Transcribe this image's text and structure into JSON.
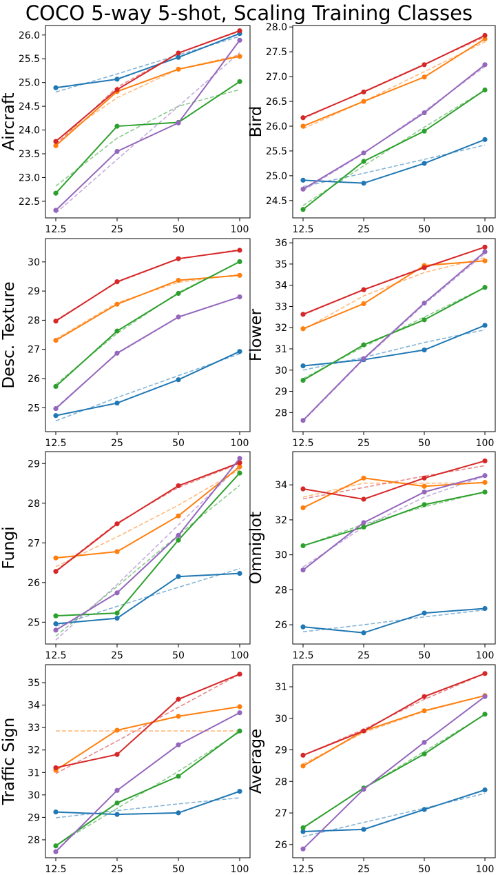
{
  "figure": {
    "title": "COCO 5-way 5-shot, Scaling Training Classes"
  },
  "colors": {
    "blue": "#1f77b4",
    "orange": "#ff7f0e",
    "green": "#2ca02c",
    "red": "#d62728",
    "purple": "#9467bd"
  },
  "chart_data": [
    {
      "type": "line",
      "title": "",
      "xlabel": "",
      "ylabel": "Aircraft",
      "categories": [
        "12.5",
        "25",
        "50",
        "100"
      ],
      "ylim": [
        22.15,
        26.2
      ],
      "yticks": [
        22.5,
        23.0,
        23.5,
        24.0,
        24.5,
        25.0,
        25.5,
        26.0
      ],
      "ytick_decimals": 1,
      "series": [
        {
          "name": "blue",
          "color": "#1f77b4",
          "values": [
            24.89,
            25.07,
            25.53,
            26.03
          ],
          "fit": [
            24.8,
            25.18,
            25.58,
            25.97
          ]
        },
        {
          "name": "orange",
          "color": "#ff7f0e",
          "values": [
            23.67,
            24.81,
            25.28,
            25.55
          ],
          "fit": [
            23.78,
            24.68,
            25.28,
            25.58
          ]
        },
        {
          "name": "green",
          "color": "#2ca02c",
          "values": [
            22.67,
            24.08,
            24.16,
            25.02
          ],
          "fit": [
            22.82,
            23.83,
            24.5,
            24.85
          ]
        },
        {
          "name": "red",
          "color": "#d62728",
          "values": [
            23.76,
            24.85,
            25.62,
            26.09
          ],
          "fit": [
            23.7,
            24.9,
            25.62,
            26.08
          ]
        },
        {
          "name": "purple",
          "color": "#9467bd",
          "values": [
            22.31,
            23.55,
            24.15,
            25.89
          ],
          "fit": [
            22.25,
            23.38,
            24.5,
            25.63
          ]
        }
      ]
    },
    {
      "type": "line",
      "title": "",
      "xlabel": "",
      "ylabel": "Bird",
      "categories": [
        "12.5",
        "25",
        "50",
        "100"
      ],
      "ylim": [
        24.15,
        28.03
      ],
      "yticks": [
        24.5,
        25.0,
        25.5,
        26.0,
        26.5,
        27.0,
        27.5,
        28.0
      ],
      "ytick_decimals": 1,
      "series": [
        {
          "name": "blue",
          "color": "#1f77b4",
          "values": [
            24.91,
            24.85,
            25.25,
            25.73
          ],
          "fit": [
            24.78,
            25.05,
            25.33,
            25.62
          ]
        },
        {
          "name": "orange",
          "color": "#ff7f0e",
          "values": [
            26.0,
            26.5,
            26.99,
            27.76
          ],
          "fit": [
            25.95,
            26.5,
            27.1,
            27.7
          ]
        },
        {
          "name": "green",
          "color": "#2ca02c",
          "values": [
            24.32,
            25.29,
            25.9,
            26.73
          ],
          "fit": [
            24.4,
            25.2,
            25.98,
            26.73
          ]
        },
        {
          "name": "red",
          "color": "#d62728",
          "values": [
            26.17,
            26.69,
            27.24,
            27.83
          ],
          "fit": [
            26.15,
            26.7,
            27.25,
            27.8
          ]
        },
        {
          "name": "purple",
          "color": "#9467bd",
          "values": [
            24.73,
            25.46,
            26.27,
            27.24
          ],
          "fit": [
            24.7,
            25.45,
            26.3,
            27.2
          ]
        }
      ]
    },
    {
      "type": "line",
      "title": "",
      "xlabel": "",
      "ylabel": "Desc. Texture",
      "categories": [
        "12.5",
        "25",
        "50",
        "100"
      ],
      "ylim": [
        24.18,
        30.8
      ],
      "yticks": [
        25,
        26,
        27,
        28,
        29,
        30
      ],
      "ytick_decimals": 0,
      "series": [
        {
          "name": "blue",
          "color": "#1f77b4",
          "values": [
            24.73,
            25.16,
            25.96,
            26.93
          ],
          "fit": [
            24.55,
            25.35,
            26.1,
            26.85
          ]
        },
        {
          "name": "orange",
          "color": "#ff7f0e",
          "values": [
            27.31,
            28.55,
            29.37,
            29.54
          ],
          "fit": [
            27.35,
            28.6,
            29.3,
            29.57
          ]
        },
        {
          "name": "green",
          "color": "#2ca02c",
          "values": [
            25.73,
            27.63,
            28.92,
            30.01
          ],
          "fit": [
            25.8,
            27.55,
            28.95,
            30.0
          ]
        },
        {
          "name": "red",
          "color": "#d62728",
          "values": [
            27.97,
            29.32,
            30.11,
            30.4
          ],
          "fit": [
            28.0,
            29.3,
            30.1,
            30.42
          ]
        },
        {
          "name": "purple",
          "color": "#9467bd",
          "values": [
            24.97,
            26.87,
            28.11,
            28.8
          ],
          "fit": [
            25.0,
            26.85,
            28.1,
            28.8
          ]
        }
      ]
    },
    {
      "type": "line",
      "title": "",
      "xlabel": "",
      "ylabel": "Flower",
      "categories": [
        "12.5",
        "25",
        "50",
        "100"
      ],
      "ylim": [
        27.1,
        36.2
      ],
      "yticks": [
        28,
        29,
        30,
        31,
        32,
        33,
        34,
        35,
        36
      ],
      "ytick_decimals": 0,
      "series": [
        {
          "name": "blue",
          "color": "#1f77b4",
          "values": [
            30.2,
            30.49,
            30.95,
            32.11
          ],
          "fit": [
            30.0,
            30.6,
            31.3,
            31.9
          ]
        },
        {
          "name": "orange",
          "color": "#ff7f0e",
          "values": [
            31.95,
            33.13,
            34.93,
            35.15
          ],
          "fit": [
            31.9,
            33.5,
            34.6,
            35.3
          ]
        },
        {
          "name": "green",
          "color": "#2ca02c",
          "values": [
            29.52,
            31.19,
            32.37,
            33.9
          ],
          "fit": [
            29.6,
            31.1,
            32.5,
            33.9
          ]
        },
        {
          "name": "red",
          "color": "#d62728",
          "values": [
            32.63,
            33.79,
            34.83,
            35.8
          ],
          "fit": [
            32.6,
            33.8,
            34.85,
            35.8
          ]
        },
        {
          "name": "purple",
          "color": "#9467bd",
          "values": [
            27.63,
            30.54,
            33.16,
            35.58
          ],
          "fit": [
            27.6,
            30.5,
            33.1,
            35.5
          ]
        }
      ]
    },
    {
      "type": "line",
      "title": "",
      "xlabel": "",
      "ylabel": "Fungi",
      "categories": [
        "12.5",
        "25",
        "50",
        "100"
      ],
      "ylim": [
        24.45,
        29.3
      ],
      "yticks": [
        25,
        26,
        27,
        28,
        29
      ],
      "ytick_decimals": 0,
      "series": [
        {
          "name": "blue",
          "color": "#1f77b4",
          "values": [
            24.96,
            25.1,
            26.15,
            26.23
          ],
          "fit": [
            24.9,
            25.4,
            25.88,
            26.35
          ]
        },
        {
          "name": "orange",
          "color": "#ff7f0e",
          "values": [
            26.62,
            26.78,
            27.68,
            28.92
          ],
          "fit": [
            26.4,
            27.15,
            27.95,
            28.85
          ]
        },
        {
          "name": "green",
          "color": "#2ca02c",
          "values": [
            25.16,
            25.23,
            27.07,
            28.76
          ],
          "fit": [
            24.65,
            25.9,
            27.2,
            28.45
          ]
        },
        {
          "name": "red",
          "color": "#d62728",
          "values": [
            26.28,
            27.48,
            28.44,
            29.02
          ],
          "fit": [
            26.3,
            27.5,
            28.4,
            29.0
          ]
        },
        {
          "name": "purple",
          "color": "#9467bd",
          "values": [
            24.8,
            25.74,
            27.19,
            29.13
          ],
          "fit": [
            24.55,
            25.95,
            27.45,
            28.95
          ]
        }
      ]
    },
    {
      "type": "line",
      "title": "",
      "xlabel": "",
      "ylabel": "Omniglot",
      "categories": [
        "12.5",
        "25",
        "50",
        "100"
      ],
      "ylim": [
        24.9,
        35.9
      ],
      "yticks": [
        26,
        28,
        30,
        32,
        34
      ],
      "ytick_decimals": 0,
      "series": [
        {
          "name": "blue",
          "color": "#1f77b4",
          "values": [
            25.88,
            25.54,
            26.67,
            26.93
          ],
          "fit": [
            25.6,
            26.0,
            26.45,
            26.85
          ]
        },
        {
          "name": "orange",
          "color": "#ff7f0e",
          "values": [
            32.69,
            34.39,
            33.92,
            34.14
          ],
          "fit": [
            33.3,
            34.1,
            34.1,
            34.1
          ]
        },
        {
          "name": "green",
          "color": "#2ca02c",
          "values": [
            30.52,
            31.59,
            32.87,
            33.59
          ],
          "fit": [
            30.5,
            31.75,
            32.75,
            33.6
          ]
        },
        {
          "name": "red",
          "color": "#d62728",
          "values": [
            33.77,
            33.18,
            34.39,
            35.37
          ],
          "fit": [
            33.2,
            33.85,
            34.5,
            35.1
          ]
        },
        {
          "name": "purple",
          "color": "#9467bd",
          "values": [
            29.13,
            31.84,
            33.59,
            34.53
          ],
          "fit": [
            29.3,
            31.6,
            33.3,
            34.5
          ]
        }
      ]
    },
    {
      "type": "line",
      "title": "",
      "xlabel": "",
      "ylabel": "Traffic Sign",
      "categories": [
        "12.5",
        "25",
        "50",
        "100"
      ],
      "ylim": [
        27.2,
        35.8
      ],
      "yticks": [
        28,
        29,
        30,
        31,
        32,
        33,
        34,
        35
      ],
      "ytick_decimals": 0,
      "series": [
        {
          "name": "blue",
          "color": "#1f77b4",
          "values": [
            29.24,
            29.13,
            29.2,
            30.16
          ],
          "fit": [
            28.98,
            29.3,
            29.6,
            29.87
          ]
        },
        {
          "name": "orange",
          "color": "#ff7f0e",
          "values": [
            31.1,
            32.88,
            33.5,
            33.93
          ],
          "fit": [
            32.85,
            32.85,
            32.85,
            32.85
          ]
        },
        {
          "name": "green",
          "color": "#2ca02c",
          "values": [
            27.73,
            29.64,
            30.83,
            32.85
          ],
          "fit": [
            27.75,
            29.4,
            31.05,
            32.8
          ]
        },
        {
          "name": "red",
          "color": "#d62728",
          "values": [
            31.21,
            31.8,
            34.26,
            35.38
          ],
          "fit": [
            30.95,
            32.4,
            33.9,
            35.38
          ]
        },
        {
          "name": "purple",
          "color": "#9467bd",
          "values": [
            27.47,
            30.2,
            32.23,
            33.66
          ],
          "fit": [
            27.5,
            30.2,
            32.23,
            33.66
          ]
        }
      ]
    },
    {
      "type": "line",
      "title": "",
      "xlabel": "",
      "ylabel": "Average",
      "categories": [
        "12.5",
        "25",
        "50",
        "100"
      ],
      "ylim": [
        25.58,
        31.7
      ],
      "yticks": [
        26,
        27,
        28,
        29,
        30,
        31
      ],
      "ytick_decimals": 0,
      "series": [
        {
          "name": "blue",
          "color": "#1f77b4",
          "values": [
            26.41,
            26.48,
            27.11,
            27.73
          ],
          "fit": [
            26.25,
            26.7,
            27.15,
            27.62
          ]
        },
        {
          "name": "orange",
          "color": "#ff7f0e",
          "values": [
            28.49,
            29.6,
            30.24,
            30.72
          ],
          "fit": [
            28.55,
            29.55,
            30.22,
            30.72
          ]
        },
        {
          "name": "green",
          "color": "#2ca02c",
          "values": [
            26.53,
            27.79,
            28.87,
            30.13
          ],
          "fit": [
            26.55,
            27.78,
            28.95,
            30.12
          ]
        },
        {
          "name": "red",
          "color": "#d62728",
          "values": [
            28.83,
            29.6,
            30.69,
            31.42
          ],
          "fit": [
            28.83,
            29.65,
            30.6,
            31.42
          ]
        },
        {
          "name": "purple",
          "color": "#9467bd",
          "values": [
            25.86,
            27.75,
            29.24,
            30.69
          ],
          "fit": [
            25.86,
            27.75,
            29.24,
            30.69
          ]
        }
      ]
    }
  ]
}
